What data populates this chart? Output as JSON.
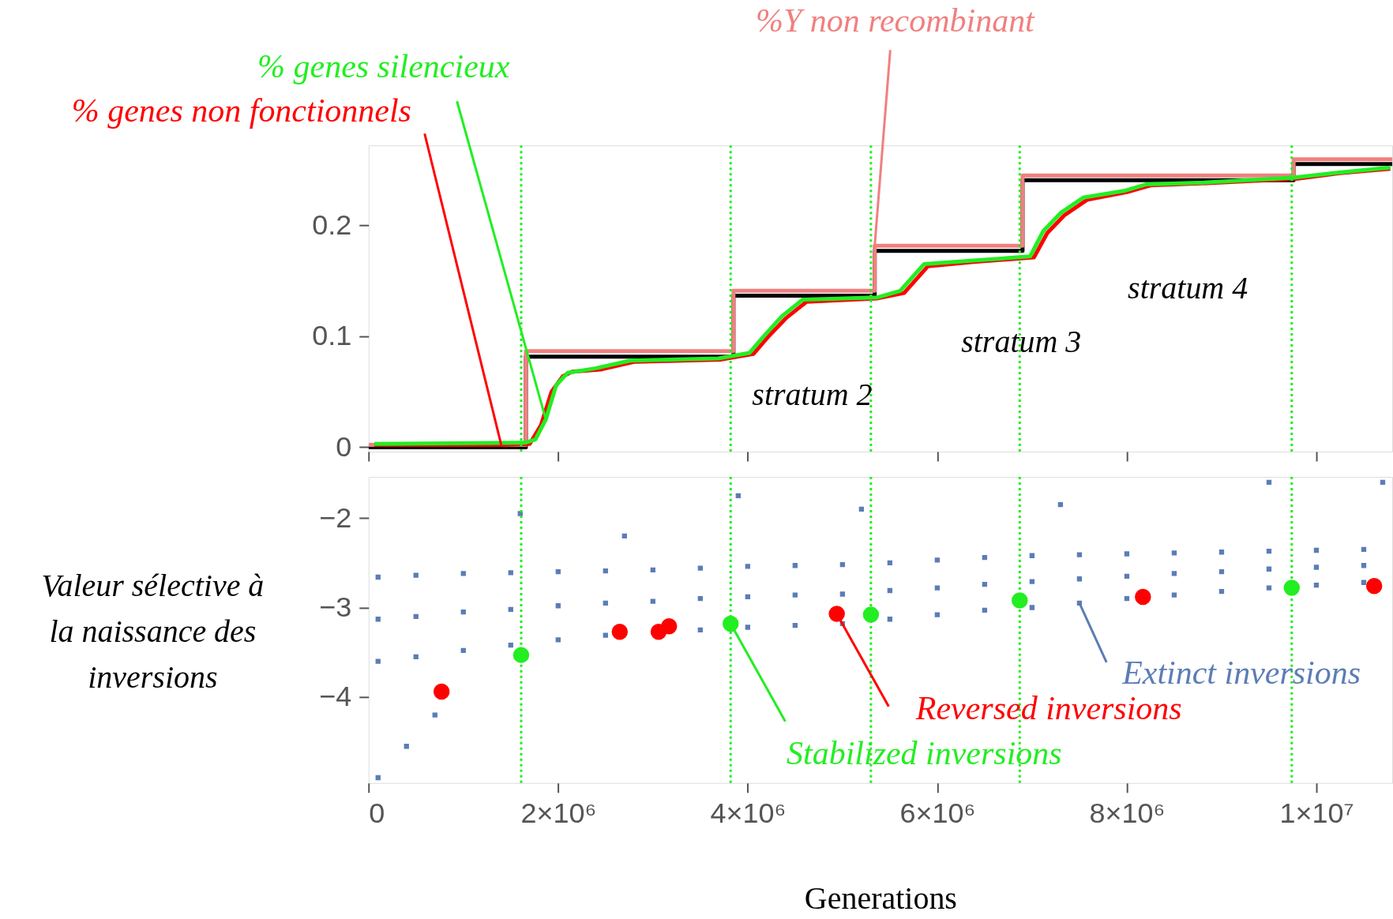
{
  "chart_data": [
    {
      "type": "line",
      "xlim": [
        0,
        10800000
      ],
      "ylim": [
        -0.004,
        0.272
      ],
      "xticks": [
        0,
        2000000,
        4000000,
        6000000,
        8000000,
        10000000
      ],
      "yticks": [
        {
          "value": 0,
          "label": "0"
        },
        0.1,
        0.2
      ],
      "tick_labels": "y",
      "grid": false,
      "series": [
        {
          "type": "step",
          "color": "#000000",
          "x": [
            0,
            1660000,
            3850000,
            5340000,
            6900000,
            9760000,
            10800000
          ],
          "values": [
            0,
            0.0816,
            0.1365,
            0.177,
            0.2406,
            0.2553,
            0.2553
          ]
        },
        {
          "type": "step",
          "name": "%Y non recombinant",
          "color": "#f08080",
          "x": [
            0,
            1660000,
            3850000,
            5340000,
            6900000,
            9760000,
            10800000
          ],
          "values": [
            0.002,
            0.0865,
            0.141,
            0.1816,
            0.245,
            0.2596,
            0.2596
          ]
        },
        {
          "name": "% genes non fonctionnels",
          "color": "#ff0000",
          "x": [
            60000,
            1400000,
            1700000,
            1820000,
            1930000,
            2050000,
            2150000,
            2450000,
            2800000,
            3720000,
            4060000,
            4210000,
            4400000,
            4620000,
            5360000,
            5650000,
            5900000,
            6380000,
            7020000,
            7160000,
            7340000,
            7580000,
            8000000,
            8250000,
            8850000,
            9800000,
            10250000,
            10780000
          ],
          "values": [
            0.002,
            0.002,
            0.003,
            0.02,
            0.05,
            0.064,
            0.068,
            0.07,
            0.077,
            0.079,
            0.084,
            0.099,
            0.116,
            0.131,
            0.134,
            0.139,
            0.163,
            0.167,
            0.171,
            0.193,
            0.209,
            0.223,
            0.23,
            0.236,
            0.238,
            0.242,
            0.247,
            0.251
          ]
        },
        {
          "name": "% genes silencieux",
          "color": "#22ee22",
          "x": [
            60000,
            1650000,
            1760000,
            1870000,
            1980000,
            2100000,
            2390000,
            2760000,
            3690000,
            4020000,
            4170000,
            4360000,
            4580000,
            5370000,
            5610000,
            5860000,
            6350000,
            6980000,
            7120000,
            7300000,
            7540000,
            7970000,
            8210000,
            8810000,
            9760000,
            10220000,
            10780000
          ],
          "values": [
            0.003,
            0.004,
            0.007,
            0.025,
            0.056,
            0.067,
            0.071,
            0.078,
            0.08,
            0.085,
            0.1,
            0.118,
            0.133,
            0.135,
            0.141,
            0.165,
            0.168,
            0.172,
            0.195,
            0.211,
            0.225,
            0.231,
            0.237,
            0.2385,
            0.243,
            0.2475,
            0.252
          ]
        }
      ],
      "ref_lines": [
        {
          "axis": "x",
          "value": 1610000,
          "color": "#22ee22",
          "line_style": "dotted"
        },
        {
          "axis": "x",
          "value": 3820000,
          "color": "#22ee22",
          "line_style": "dotted"
        },
        {
          "axis": "x",
          "value": 5300000,
          "color": "#22ee22",
          "line_style": "dotted"
        },
        {
          "axis": "x",
          "value": 6870000,
          "color": "#22ee22",
          "line_style": "dotted"
        },
        {
          "axis": "x",
          "value": 9740000,
          "color": "#22ee22",
          "line_style": "dotted"
        }
      ],
      "annotations": [
        "stratum 2",
        "stratum 3",
        "stratum 4"
      ]
    },
    {
      "type": "scatter",
      "xlim": [
        0,
        10800000
      ],
      "ylim": [
        -4.96,
        -1.54
      ],
      "xticks": [
        {
          "value": 0,
          "label": "0"
        },
        {
          "value": 2000000,
          "label": "2×10⁶"
        },
        {
          "value": 4000000,
          "label": "4×10⁶"
        },
        {
          "value": 6000000,
          "label": "6×10⁶"
        },
        {
          "value": 8000000,
          "label": "8×10⁶"
        },
        {
          "value": 10000000,
          "label": "1×10⁷"
        }
      ],
      "yticks": [
        -2,
        -3,
        -4
      ],
      "grid": false,
      "xlabel": "Generations",
      "ylabel": "Valeur sélective à la naissance des inversions",
      "series": [
        {
          "name": "Extinct inversions",
          "color": "#5b7db5",
          "marker": "square",
          "x": [
            100000,
            500000,
            1000000,
            1500000,
            2000000,
            2500000,
            3000000,
            3500000,
            4000000,
            4500000,
            5000000,
            5500000,
            6000000,
            6500000,
            7000000,
            7500000,
            8000000,
            8500000,
            9000000,
            9500000,
            10000000,
            10500000,
            100000,
            500000,
            1000000,
            1500000,
            2000000,
            2500000,
            3000000,
            3500000,
            4000000,
            4500000,
            5000000,
            5500000,
            6000000,
            6500000,
            7000000,
            7500000,
            8000000,
            8500000,
            9000000,
            9500000,
            10000000,
            10500000,
            100000,
            500000,
            1000000,
            1500000,
            2000000,
            2500000,
            3000000,
            3500000,
            4000000,
            4500000,
            5000000,
            5500000,
            6000000,
            6500000,
            7000000,
            7500000,
            8000000,
            8500000,
            9000000,
            9500000,
            10000000,
            10500000,
            100000,
            400000,
            700000,
            1600000,
            2700000,
            3900000,
            5200000,
            7300000,
            9500000,
            10700000
          ],
          "values": [
            -2.66,
            -2.64,
            -2.62,
            -2.61,
            -2.6,
            -2.59,
            -2.58,
            -2.56,
            -2.54,
            -2.53,
            -2.52,
            -2.5,
            -2.47,
            -2.44,
            -2.42,
            -2.41,
            -2.4,
            -2.39,
            -2.38,
            -2.37,
            -2.36,
            -2.35,
            -3.13,
            -3.1,
            -3.05,
            -3.02,
            -2.98,
            -2.95,
            -2.93,
            -2.9,
            -2.88,
            -2.86,
            -2.85,
            -2.81,
            -2.78,
            -2.74,
            -2.71,
            -2.68,
            -2.65,
            -2.62,
            -2.6,
            -2.57,
            -2.55,
            -2.53,
            -3.6,
            -3.55,
            -3.48,
            -3.42,
            -3.36,
            -3.31,
            null,
            -3.25,
            -3.22,
            -3.2,
            -3.18,
            -3.13,
            -3.08,
            -3.03,
            -3.0,
            -2.95,
            -2.9,
            -2.86,
            -2.82,
            -2.78,
            -2.75,
            -2.72,
            -4.9,
            -4.55,
            -4.2,
            -1.95,
            -2.2,
            -1.75,
            -1.9,
            -1.85,
            -1.6,
            -1.6
          ]
        },
        {
          "name": "Reversed inversions",
          "color": "#ff0000",
          "marker": "circle",
          "x": [
            770000,
            2650000,
            3060000,
            3170000,
            4940000,
            8170000,
            10610000
          ],
          "values": [
            -3.94,
            -3.27,
            -3.27,
            -3.21,
            -3.07,
            -2.88,
            -2.76
          ]
        },
        {
          "name": "Stabilized inversions",
          "color": "#22ee22",
          "marker": "circle",
          "x": [
            1610000,
            3820000,
            5300000,
            6870000,
            9740000
          ],
          "values": [
            -3.53,
            -3.18,
            -3.08,
            -2.92,
            -2.78
          ]
        }
      ],
      "ref_lines": [
        {
          "axis": "x",
          "value": 1610000,
          "color": "#22ee22",
          "line_style": "dotted"
        },
        {
          "axis": "x",
          "value": 3820000,
          "color": "#22ee22",
          "line_style": "dotted"
        },
        {
          "axis": "x",
          "value": 5300000,
          "color": "#22ee22",
          "line_style": "dotted"
        },
        {
          "axis": "x",
          "value": 6870000,
          "color": "#22ee22",
          "line_style": "dotted"
        },
        {
          "axis": "x",
          "value": 9740000,
          "color": "#22ee22",
          "line_style": "dotted"
        }
      ]
    }
  ]
}
